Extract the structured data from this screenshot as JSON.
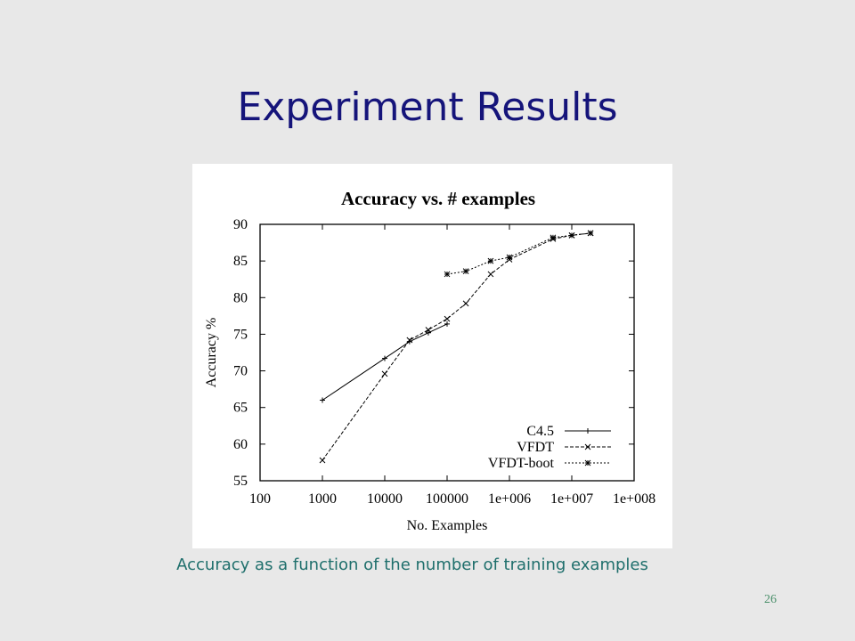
{
  "slide": {
    "title": "Experiment Results",
    "caption": "Accuracy as a function of the number of training examples",
    "page_number": "26",
    "colors": {
      "title": "#15147a",
      "caption": "#1f6f6c",
      "background": "#e8e8e8"
    }
  },
  "chart_data": {
    "type": "line",
    "title": "Accuracy vs. # examples",
    "xlabel": "No. Examples",
    "ylabel": "Accuracy %",
    "x_scale": "log",
    "xlim": [
      100,
      100000000
    ],
    "ylim": [
      55,
      90
    ],
    "x_ticks": [
      100,
      1000,
      10000,
      100000,
      1000000,
      10000000,
      100000000
    ],
    "x_tick_labels": [
      "100",
      "1000",
      "10000",
      "100000",
      "1e+006",
      "1e+007",
      "1e+008"
    ],
    "y_ticks": [
      55,
      60,
      65,
      70,
      75,
      80,
      85,
      90
    ],
    "y_tick_labels": [
      "55",
      "60",
      "65",
      "70",
      "75",
      "80",
      "85",
      "90"
    ],
    "grid": false,
    "legend_position": "bottom-right",
    "series": [
      {
        "name": "C4.5",
        "marker": "plus",
        "dash": "solid",
        "x": [
          1000,
          10000,
          25000,
          50000,
          100000
        ],
        "y": [
          66.0,
          71.7,
          74.0,
          75.2,
          76.4
        ]
      },
      {
        "name": "VFDT",
        "marker": "cross",
        "dash": "dashed",
        "x": [
          1000,
          10000,
          25000,
          50000,
          100000,
          200000,
          500000,
          1000000,
          5000000,
          10000000,
          20000000
        ],
        "y": [
          57.8,
          69.6,
          74.2,
          75.6,
          77.1,
          79.2,
          83.2,
          85.2,
          88.0,
          88.5,
          88.8
        ]
      },
      {
        "name": "VFDT-boot",
        "marker": "star",
        "dash": "dotted",
        "x": [
          100000,
          200000,
          500000,
          1000000,
          5000000,
          10000000,
          20000000
        ],
        "y": [
          83.2,
          83.6,
          85.0,
          85.5,
          88.2,
          88.5,
          88.8
        ]
      }
    ]
  }
}
